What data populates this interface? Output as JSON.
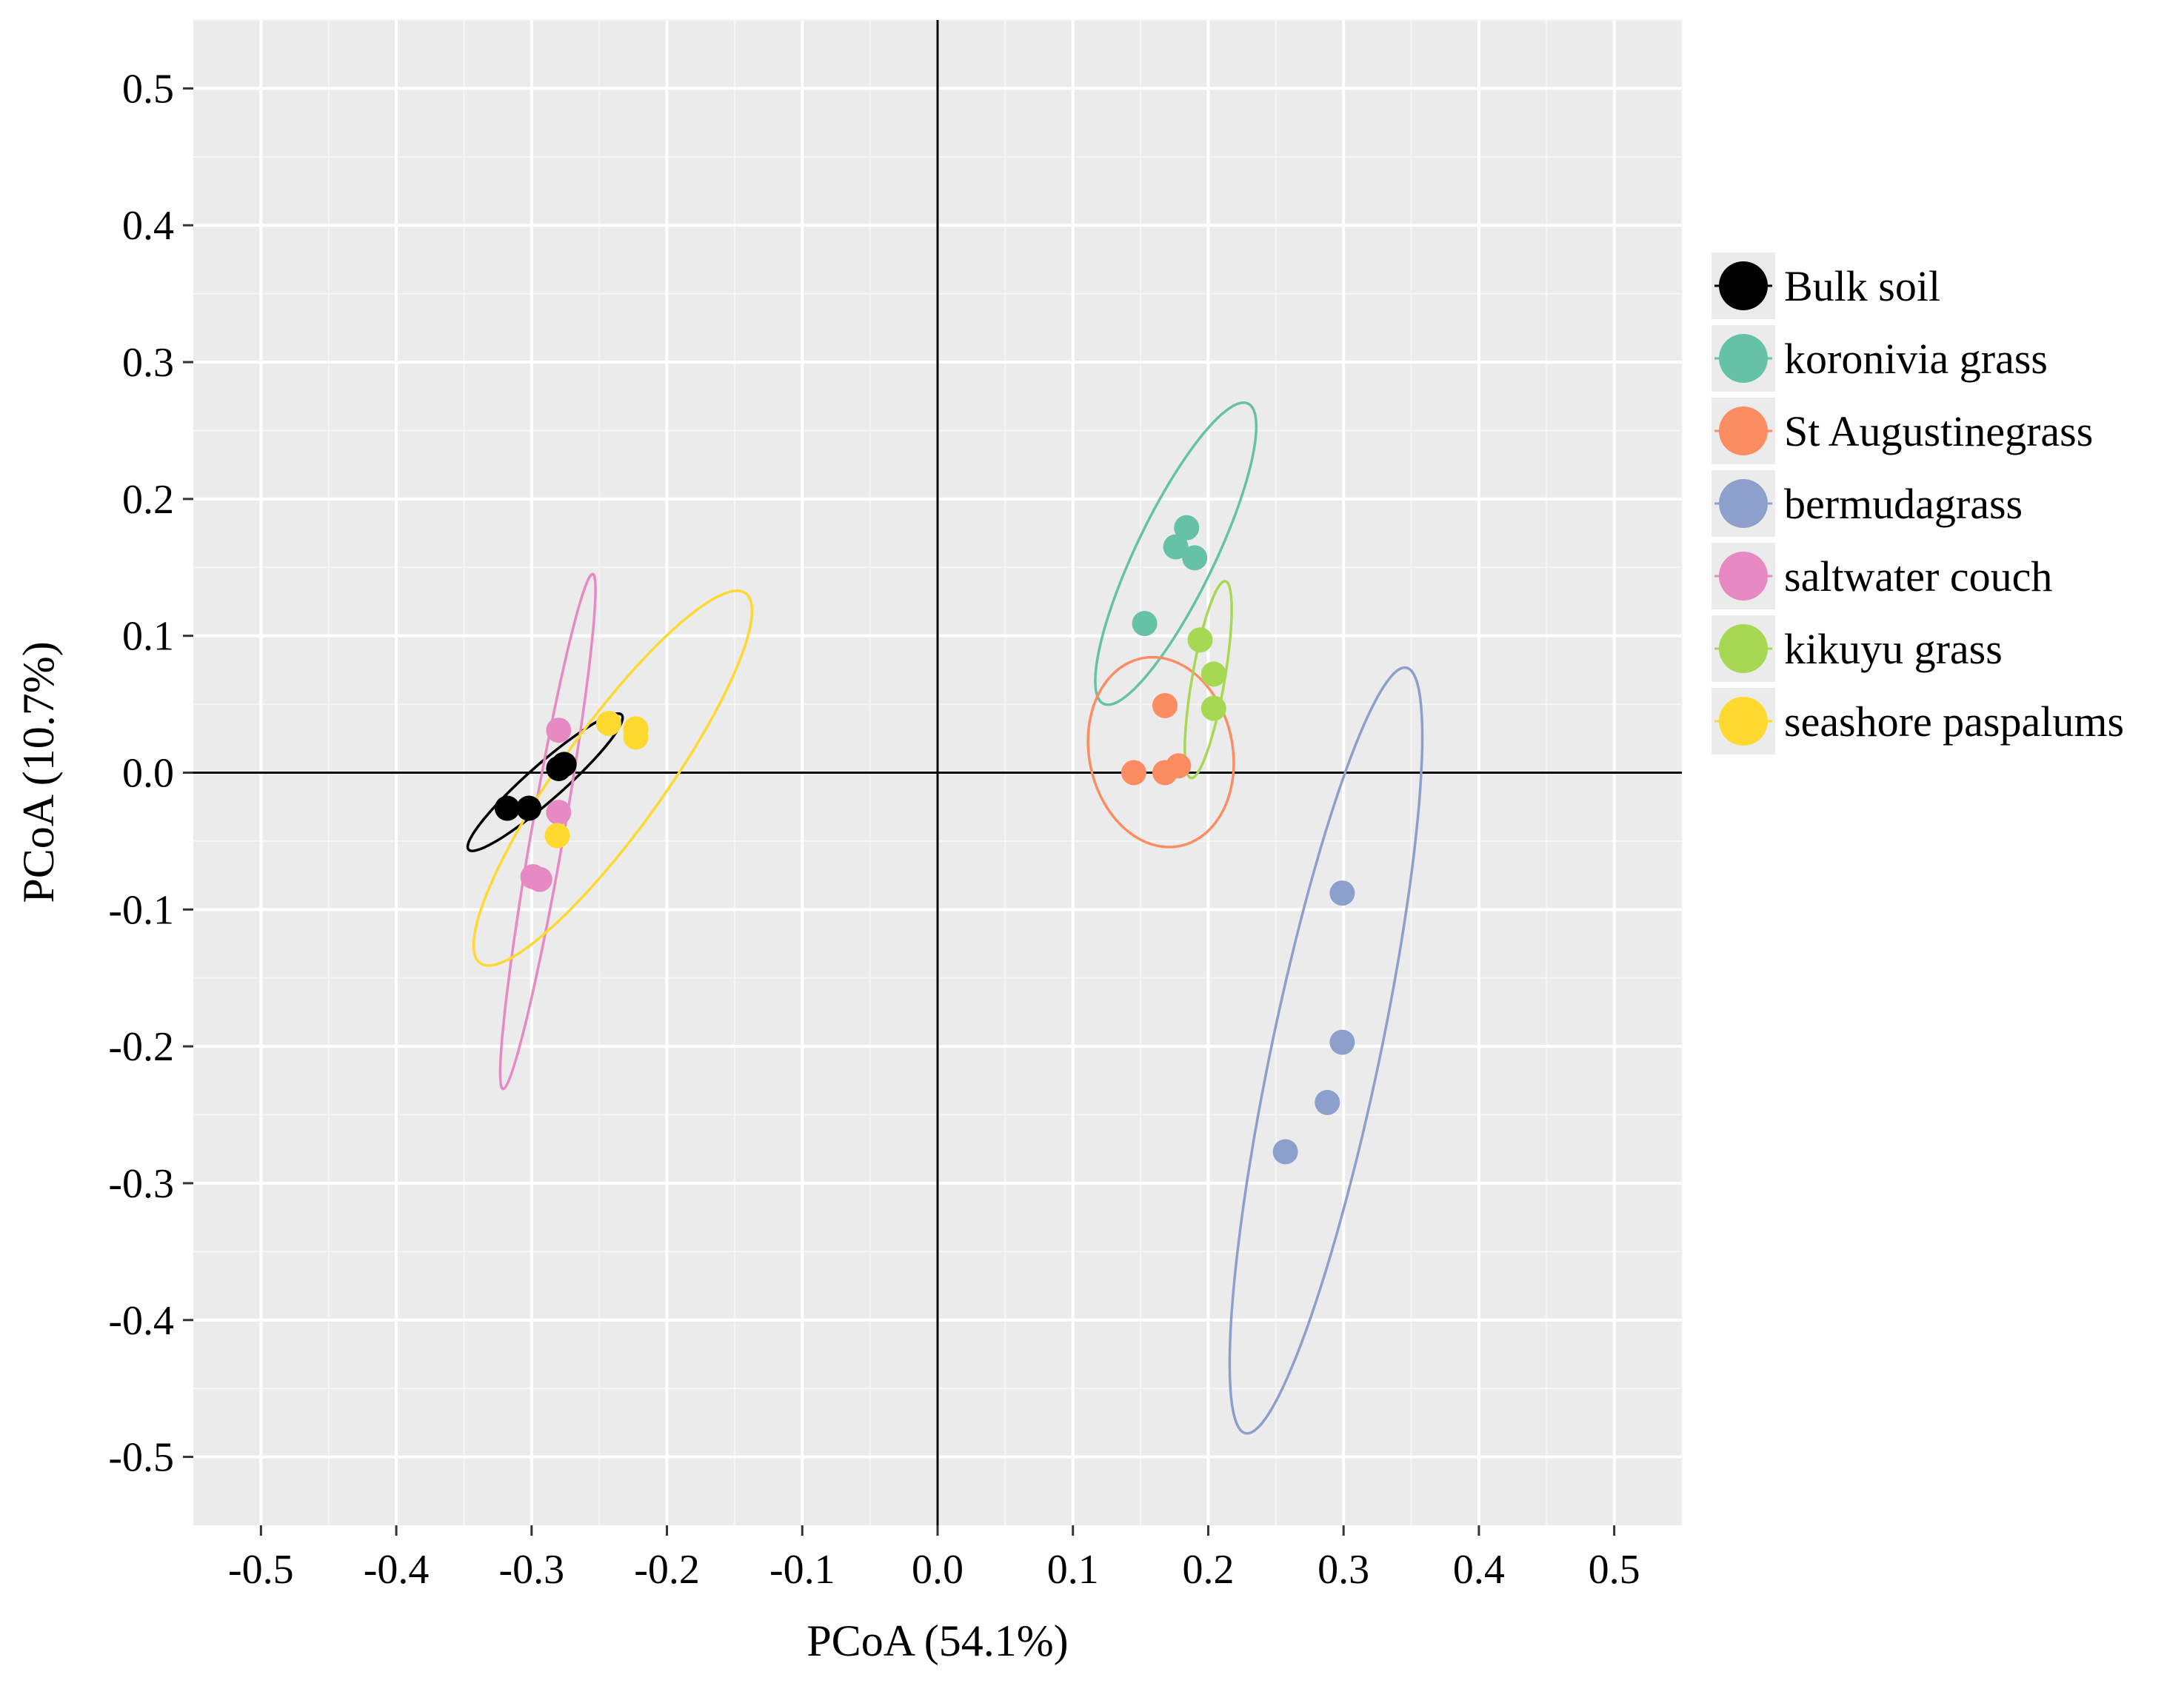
{
  "chart_data": {
    "type": "scatter",
    "title": "",
    "xlabel": "PCoA (54.1%)",
    "ylabel": "PCoA (10.7%)",
    "xlim": [
      -0.55,
      0.55
    ],
    "ylim": [
      -0.55,
      0.55
    ],
    "xticks": [
      -0.5,
      -0.4,
      -0.3,
      -0.2,
      -0.1,
      0.0,
      0.1,
      0.2,
      0.3,
      0.4,
      0.5
    ],
    "yticks": [
      -0.5,
      -0.4,
      -0.3,
      -0.2,
      -0.1,
      0.0,
      0.1,
      0.2,
      0.3,
      0.4,
      0.5
    ],
    "xtick_labels": [
      "-0.5",
      "-0.4",
      "-0.3",
      "-0.2",
      "-0.1",
      "0.0",
      "0.1",
      "0.2",
      "0.3",
      "0.4",
      "0.5"
    ],
    "ytick_labels": [
      "-0.5",
      "-0.4",
      "-0.3",
      "-0.2",
      "-0.1",
      "0.0",
      "0.1",
      "0.2",
      "0.3",
      "0.4",
      "0.5"
    ],
    "grid": true,
    "background": "#EBEBEB",
    "reference_lines": {
      "x": 0,
      "y": 0
    },
    "legend_position": "right",
    "series": [
      {
        "name": "Bulk soil",
        "color": "#000000",
        "points": [
          [
            -0.318,
            -0.026
          ],
          [
            -0.302,
            -0.026
          ],
          [
            -0.28,
            0.003
          ],
          [
            -0.276,
            0.006
          ]
        ],
        "ellipse": {
          "cx": -0.29,
          "cy": -0.007,
          "rx": 0.075,
          "ry": 0.013,
          "angle_deg": 41
        }
      },
      {
        "name": "koronivia grass",
        "color": "#66C2A5",
        "points": [
          [
            0.153,
            0.109
          ],
          [
            0.176,
            0.165
          ],
          [
            0.184,
            0.179
          ],
          [
            0.19,
            0.157
          ]
        ],
        "ellipse": {
          "cx": 0.176,
          "cy": 0.16,
          "rx": 0.122,
          "ry": 0.029,
          "angle_deg": 64
        }
      },
      {
        "name": "St Augustinegrass",
        "color": "#FC8D62",
        "points": [
          [
            0.145,
            0.0
          ],
          [
            0.168,
            0.0
          ],
          [
            0.178,
            0.005
          ],
          [
            0.168,
            0.049
          ]
        ],
        "ellipse": {
          "cx": 0.165,
          "cy": 0.015,
          "rx": 0.053,
          "ry": 0.07,
          "angle_deg": 12
        }
      },
      {
        "name": "bermudagrass",
        "color": "#8DA0CB",
        "points": [
          [
            0.299,
            -0.088
          ],
          [
            0.299,
            -0.197
          ],
          [
            0.288,
            -0.241
          ],
          [
            0.257,
            -0.277
          ]
        ],
        "ellipse": {
          "cx": 0.287,
          "cy": -0.203,
          "rx": 0.286,
          "ry": 0.04,
          "angle_deg": 78
        }
      },
      {
        "name": "saltwater couch",
        "color": "#E78AC3",
        "points": [
          [
            -0.28,
            0.031
          ],
          [
            -0.28,
            -0.029
          ],
          [
            -0.299,
            -0.076
          ],
          [
            -0.294,
            -0.078
          ]
        ],
        "ellipse": {
          "cx": -0.288,
          "cy": -0.043,
          "rx": 0.191,
          "ry": 0.012,
          "angle_deg": 80
        }
      },
      {
        "name": "kikuyu grass",
        "color": "#A6D854",
        "points": [
          [
            0.194,
            0.097
          ],
          [
            0.204,
            0.072
          ],
          [
            0.204,
            0.047
          ]
        ],
        "ellipse": {
          "cx": 0.2,
          "cy": 0.068,
          "rx": 0.073,
          "ry": 0.012,
          "angle_deg": 80
        }
      },
      {
        "name": "seashore paspalums",
        "color": "#FFD92F",
        "points": [
          [
            -0.243,
            0.036
          ],
          [
            -0.223,
            0.026
          ],
          [
            -0.223,
            0.032
          ],
          [
            -0.281,
            -0.046
          ]
        ],
        "ellipse": {
          "cx": -0.24,
          "cy": -0.004,
          "rx": 0.167,
          "ry": 0.038,
          "angle_deg": 54
        }
      }
    ]
  }
}
